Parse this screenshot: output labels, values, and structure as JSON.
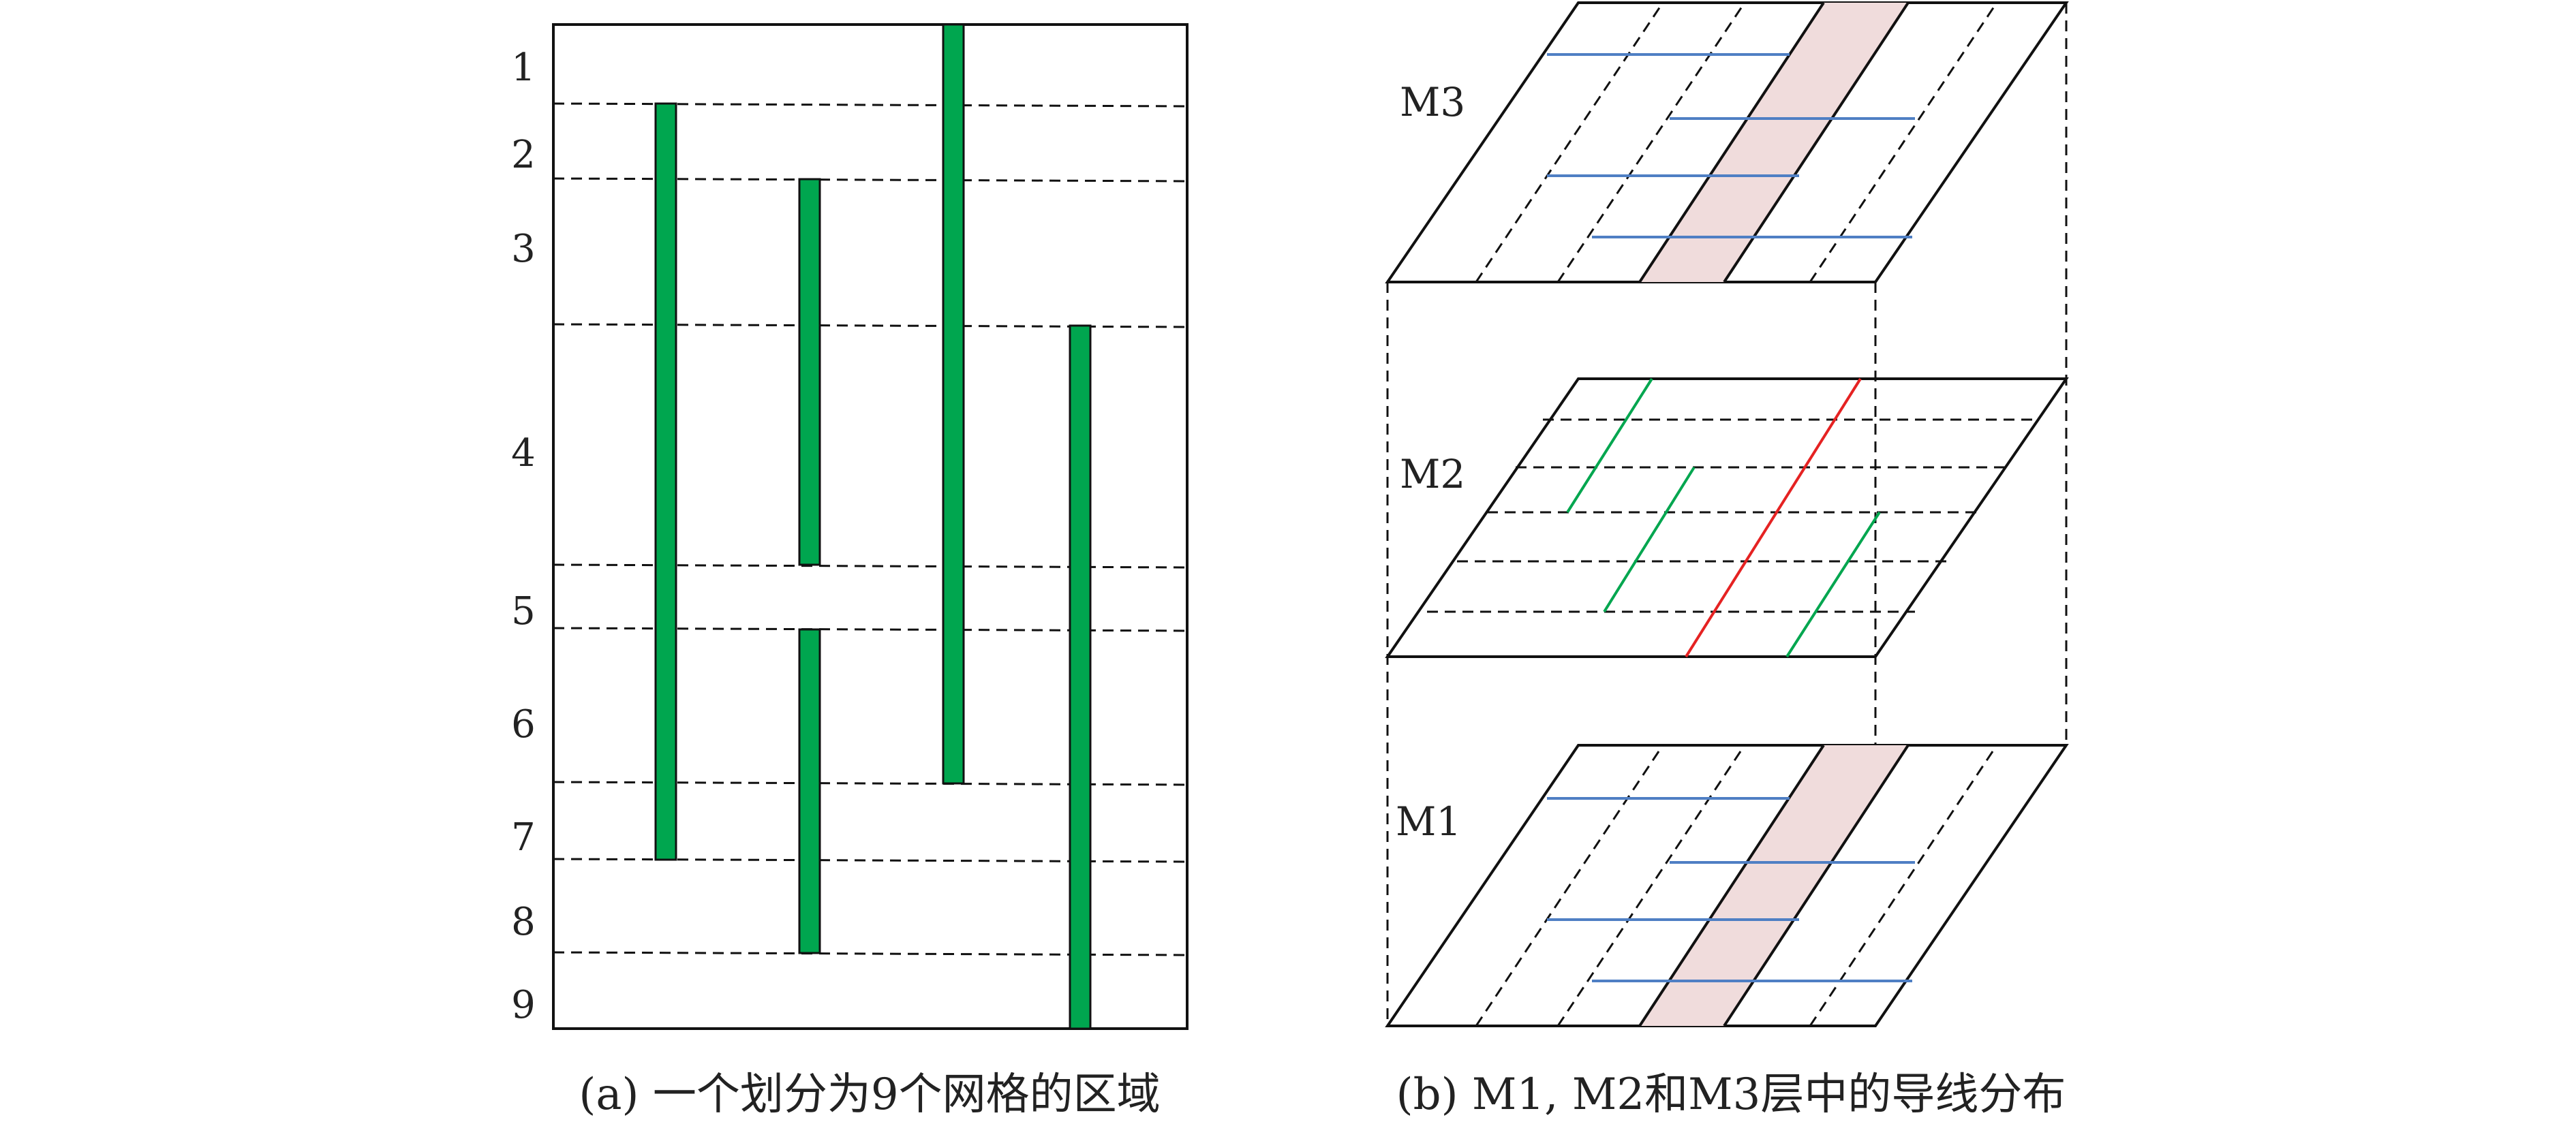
{
  "panel_a": {
    "row_labels": [
      "1",
      "2",
      "3",
      "4",
      "5",
      "6",
      "7",
      "8",
      "9"
    ],
    "caption": "(a) 一个划分为9个网格的区域"
  },
  "panel_b": {
    "layers": [
      {
        "label": "M3"
      },
      {
        "label": "M2"
      },
      {
        "label": "M1"
      }
    ],
    "caption": "(b) M1, M2和M3层中的导线分布"
  },
  "colors": {
    "wire_green": "#00a64f",
    "wire_blue": "#4f7fc4",
    "wire_red": "#e52222",
    "highlight_band": "#f0dcdc",
    "line": "#111111"
  }
}
